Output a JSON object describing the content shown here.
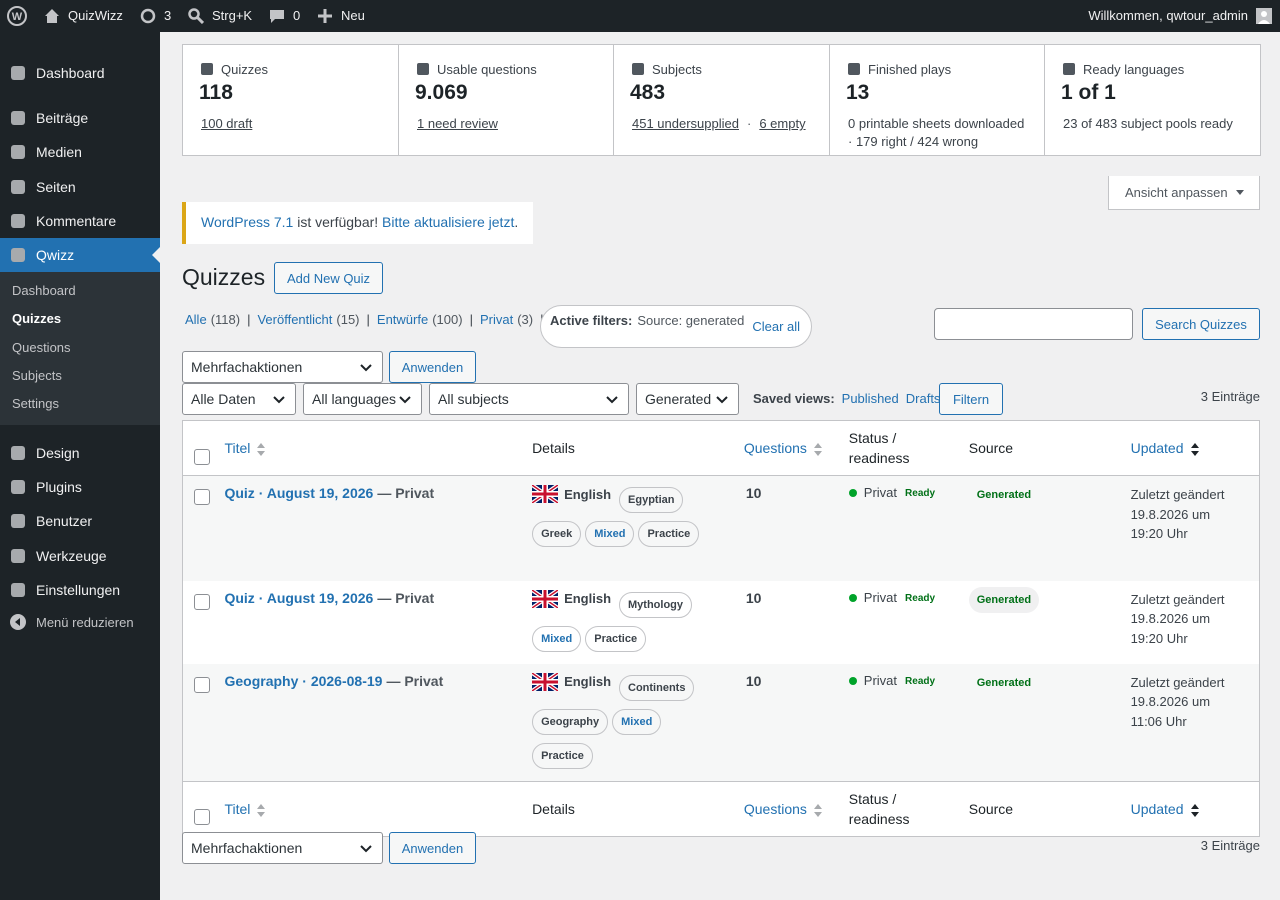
{
  "admin_bar": {
    "site_name": "QuizWizz",
    "updates": "3",
    "search": "Strg+K",
    "comments": "0",
    "new": "Neu",
    "greeting": "Willkommen, qwtour_admin"
  },
  "menu": {
    "items_top": [
      "Dashboard",
      "Beiträge",
      "Medien",
      "Seiten",
      "Kommentare"
    ],
    "current": "Qwizz",
    "submenu": [
      "Dashboard",
      "Quizzes",
      "Questions",
      "Subjects",
      "Settings"
    ],
    "submenu_current": 1,
    "items_bottom": [
      "Design",
      "Plugins",
      "Benutzer",
      "Werkzeuge",
      "Einstellungen"
    ],
    "collapse": "Menü reduzieren"
  },
  "stats": [
    {
      "label": "Quizzes",
      "value": "118",
      "links": [
        "100 draft"
      ]
    },
    {
      "label": "Usable questions",
      "value": "9.069",
      "links": [
        "1 need review"
      ]
    },
    {
      "label": "Subjects",
      "value": "483",
      "links": [
        "451 undersupplied",
        "6 empty"
      ],
      "separator": "·"
    },
    {
      "label": "Finished plays",
      "value": "13",
      "lines": [
        "0 printable sheets downloaded",
        "· 179 right / 424 wrong"
      ]
    },
    {
      "label": "Ready languages",
      "value": "1 of 1",
      "lines": [
        "23 of 483 subject pools ready"
      ]
    }
  ],
  "screen_options": "Ansicht anpassen",
  "notice": {
    "link": "WordPress 7.1",
    "text": " ist verfügbar! ",
    "action": "Bitte aktualisiere jetzt",
    "end": "."
  },
  "heading": "Quizzes",
  "add_new": "Add New Quiz",
  "views": [
    {
      "label": "Alle",
      "count": "(118)"
    },
    {
      "label": "Veröffentlicht",
      "count": "(15)"
    },
    {
      "label": "Entwürfe",
      "count": "(100)"
    },
    {
      "label": "Privat",
      "count": "(3)"
    }
  ],
  "view_separator": "|",
  "active_filters": {
    "label": "Active filters:",
    "value": "Source: generated",
    "clear": "Clear all"
  },
  "search_button": "Search Quizzes",
  "bulk_action": "Mehrfachaktionen",
  "apply": "Anwenden",
  "filters": [
    "Alle Daten",
    "All languages",
    "All subjects",
    "Generated"
  ],
  "saved_views": {
    "label": "Saved views:",
    "links": [
      "Published",
      "Drafts"
    ]
  },
  "filter_button": "Filtern",
  "item_count": "3 Einträge",
  "table": {
    "columns": [
      "Titel",
      "Details",
      "Questions",
      "Status / readiness",
      "Source",
      "Updated"
    ],
    "rows": [
      {
        "title": "Quiz · August 19, 2026",
        "suffix": "— Privat",
        "language": "English",
        "tags": [
          {
            "label": "Egyptian"
          },
          {
            "label": "Greek"
          },
          {
            "label": "Mixed",
            "color": "#2271b1"
          },
          {
            "label": "Practice"
          }
        ],
        "questions": "10",
        "status": "Privat",
        "readiness": "Ready",
        "source": "Generated",
        "updated": [
          "Zuletzt geändert",
          "19.8.2026 um",
          "19:20 Uhr"
        ]
      },
      {
        "title": "Quiz · August 19, 2026",
        "suffix": "— Privat",
        "language": "English",
        "tags": [
          {
            "label": "Mythology"
          },
          {
            "label": "Mixed",
            "color": "#2271b1"
          },
          {
            "label": "Practice"
          }
        ],
        "questions": "10",
        "status": "Privat",
        "readiness": "Ready",
        "source": "Generated",
        "updated": [
          "Zuletzt geändert",
          "19.8.2026 um",
          "19:20 Uhr"
        ]
      },
      {
        "title": "Geography · 2026-08-19",
        "suffix": "— Privat",
        "language": "English",
        "tags": [
          {
            "label": "Continents"
          },
          {
            "label": "Geography"
          },
          {
            "label": "Mixed",
            "color": "#2271b1"
          },
          {
            "label": "Practice"
          }
        ],
        "questions": "10",
        "status": "Privat",
        "readiness": "Ready",
        "source": "Generated",
        "updated": [
          "Zuletzt geändert",
          "19.8.2026 um",
          "11:06 Uhr"
        ]
      }
    ]
  }
}
